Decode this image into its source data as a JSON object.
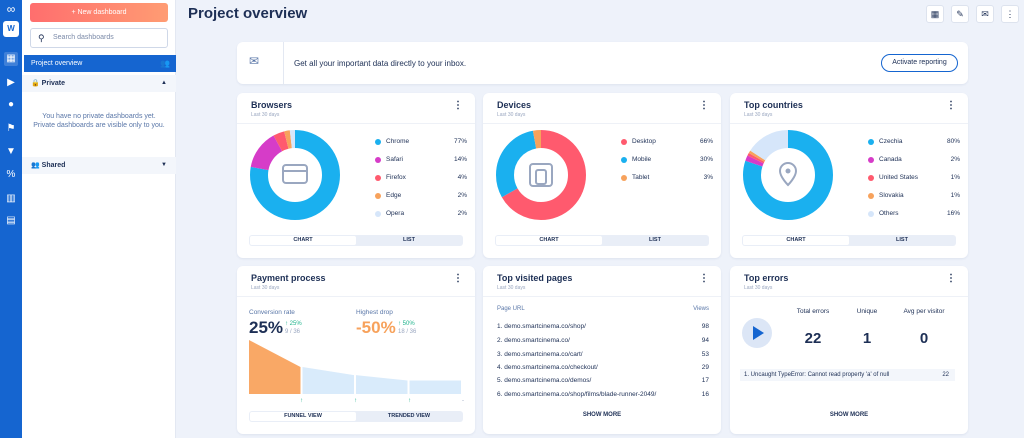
{
  "page": {
    "title": "Project overview"
  },
  "rail": {
    "workspace_initial": "W"
  },
  "sidebar": {
    "new_dashboard": "+ New dashboard",
    "search_placeholder": "Search dashboards",
    "selected": "Project overview",
    "private_label": "Private",
    "private_note": "You have no private dashboards yet. Private dashboards are visible only to you.",
    "shared_label": "Shared"
  },
  "banner": {
    "text": "Get all your important data directly to your inbox.",
    "button": "Activate reporting"
  },
  "browsers": {
    "title": "Browsers",
    "subtitle": "Last 30 days",
    "toggle": [
      "CHART",
      "LIST"
    ],
    "items": [
      {
        "name": "Chrome",
        "pct": "77%",
        "value": 77,
        "color": "#1ab0ef"
      },
      {
        "name": "Safari",
        "pct": "14%",
        "value": 14,
        "color": "#d63cc8"
      },
      {
        "name": "Firefox",
        "pct": "4%",
        "value": 4,
        "color": "#ff5a6e"
      },
      {
        "name": "Edge",
        "pct": "2%",
        "value": 2,
        "color": "#f7a25c"
      },
      {
        "name": "Opera",
        "pct": "2%",
        "value": 2,
        "color": "#d6e6fa"
      }
    ]
  },
  "devices": {
    "title": "Devices",
    "subtitle": "Last 30 days",
    "toggle": [
      "CHART",
      "LIST"
    ],
    "items": [
      {
        "name": "Desktop",
        "pct": "66%",
        "value": 66,
        "color": "#ff5a6e"
      },
      {
        "name": "Mobile",
        "pct": "30%",
        "value": 30,
        "color": "#1ab0ef"
      },
      {
        "name": "Tablet",
        "pct": "3%",
        "value": 3,
        "color": "#f7a25c"
      }
    ]
  },
  "countries": {
    "title": "Top countries",
    "subtitle": "Last 30 days",
    "toggle": [
      "CHART",
      "LIST"
    ],
    "items": [
      {
        "name": "Czechia",
        "pct": "80%",
        "value": 80,
        "color": "#1ab0ef"
      },
      {
        "name": "Canada",
        "pct": "2%",
        "value": 2,
        "color": "#d63cc8"
      },
      {
        "name": "United States",
        "pct": "1%",
        "value": 1,
        "color": "#ff5a6e"
      },
      {
        "name": "Slovakia",
        "pct": "1%",
        "value": 1,
        "color": "#f7a25c"
      },
      {
        "name": "Others",
        "pct": "16%",
        "value": 16,
        "color": "#d6e6fa"
      }
    ]
  },
  "payment": {
    "title": "Payment process",
    "subtitle": "Last 30 days",
    "conv_label": "Conversion rate",
    "conv_value": "25%",
    "conv_delta": "↑ 25%",
    "conv_ratio": "9 / 36",
    "drop_label": "Highest drop",
    "drop_value": "-50%",
    "drop_delta": "↑ 50%",
    "drop_ratio": "18 / 36",
    "toggle": [
      "FUNNEL VIEW",
      "TRENDED VIEW"
    ],
    "steps": [
      100,
      50,
      35,
      25
    ],
    "arrows": [
      "↑",
      "↑",
      "↑",
      "-"
    ]
  },
  "pages": {
    "title": "Top visited pages",
    "subtitle": "Last 30 days",
    "col_url": "Page URL",
    "col_views": "Views",
    "rows": [
      {
        "url": "1. demo.smartcinema.co/shop/",
        "views": "98"
      },
      {
        "url": "2. demo.smartcinema.co/",
        "views": "94"
      },
      {
        "url": "3. demo.smartcinema.co/cart/",
        "views": "53"
      },
      {
        "url": "4. demo.smartcinema.co/checkout/",
        "views": "29"
      },
      {
        "url": "5. demo.smartcinema.co/demos/",
        "views": "17"
      },
      {
        "url": "6. demo.smartcinema.co/shop/films/blade-runner-2049/",
        "views": "16"
      }
    ],
    "show_more": "SHOW MORE"
  },
  "errors": {
    "title": "Top errors",
    "subtitle": "Last 30 days",
    "total_label": "Total errors",
    "total": "22",
    "unique_label": "Unique",
    "unique": "1",
    "avg_label": "Avg per visitor",
    "avg": "0",
    "row_text": "1. Uncaught TypeError: Cannot read property 'a' of null",
    "row_count": "22",
    "show_more": "SHOW MORE"
  }
}
